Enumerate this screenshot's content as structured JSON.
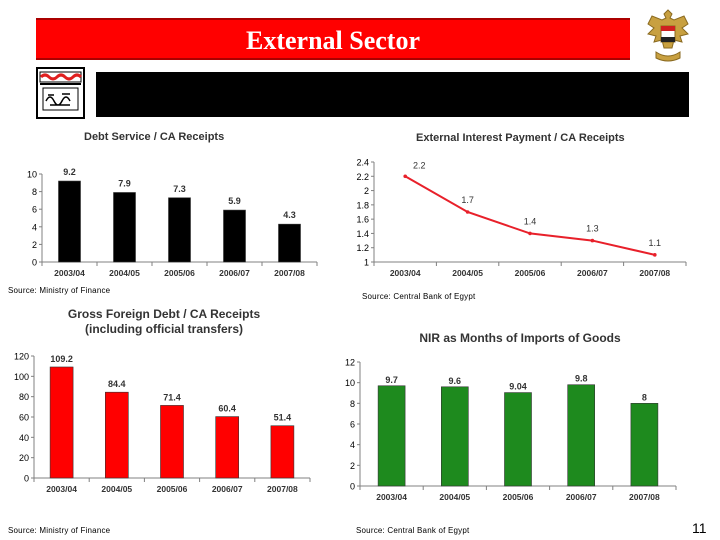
{
  "slide": {
    "title": "External Sector",
    "page_number": "11"
  },
  "sources": {
    "top_left": "Source: Ministry of Finance",
    "top_right": "Source: Central Bank of Egypt",
    "bottom_left": "Source: Ministry of Finance",
    "bottom_right": "Source: Central Bank of Egypt"
  },
  "colors": {
    "title_bar": "#ff0000",
    "debt_service_bars": "#000000",
    "gross_debt_bars": "#ff0000",
    "interest_line": "#e8202a",
    "nir_bars": "#1e8a1e"
  },
  "chart_data": [
    {
      "id": "debt-service",
      "type": "bar",
      "title": "Debt Service / CA Receipts",
      "categories": [
        "2003/04",
        "2004/05",
        "2005/06",
        "2006/07",
        "2007/08"
      ],
      "values": [
        9.2,
        7.9,
        7.3,
        5.9,
        4.3
      ],
      "labels": [
        "9.2",
        "7.9",
        "7.3",
        "5.9",
        "4.3"
      ],
      "ylim": [
        0,
        10
      ],
      "yticks": [
        0,
        2,
        4,
        6,
        8,
        10
      ],
      "grid": false
    },
    {
      "id": "interest-payment",
      "type": "line",
      "title": "External Interest Payment / CA Receipts",
      "categories": [
        "2003/04",
        "2004/05",
        "2005/06",
        "2006/07",
        "2007/08"
      ],
      "values": [
        2.2,
        1.7,
        1.4,
        1.3,
        1.1
      ],
      "labels": [
        "2.2",
        "1.7",
        "1.4",
        "1.3",
        "1.1"
      ],
      "ylim": [
        1,
        2.4
      ],
      "yticks": [
        1,
        1.2,
        1.4,
        1.6,
        1.8,
        2,
        2.2,
        2.4
      ],
      "grid": false
    },
    {
      "id": "gross-debt",
      "type": "bar",
      "title": "Gross Foreign Debt / CA Receipts",
      "subtitle": "(including official transfers)",
      "categories": [
        "2003/04",
        "2004/05",
        "2005/06",
        "2006/07",
        "2007/08"
      ],
      "values": [
        109.2,
        84.4,
        71.4,
        60.4,
        51.4
      ],
      "labels": [
        "109.2",
        "84.4",
        "71.4",
        "60.4",
        "51.4"
      ],
      "ylim": [
        0,
        120
      ],
      "yticks": [
        0,
        20,
        40,
        60,
        80,
        100,
        120
      ],
      "grid": false
    },
    {
      "id": "nir",
      "type": "bar",
      "title": "NIR as Months of Imports of Goods",
      "categories": [
        "2003/04",
        "2004/05",
        "2005/06",
        "2006/07",
        "2007/08"
      ],
      "values": [
        9.7,
        9.6,
        9.04,
        9.8,
        8
      ],
      "labels": [
        "9.7",
        "9.6",
        "9.04",
        "9.8",
        "8"
      ],
      "ylim": [
        0,
        12
      ],
      "yticks": [
        0,
        2,
        4,
        6,
        8,
        10,
        12
      ],
      "grid": false
    }
  ]
}
